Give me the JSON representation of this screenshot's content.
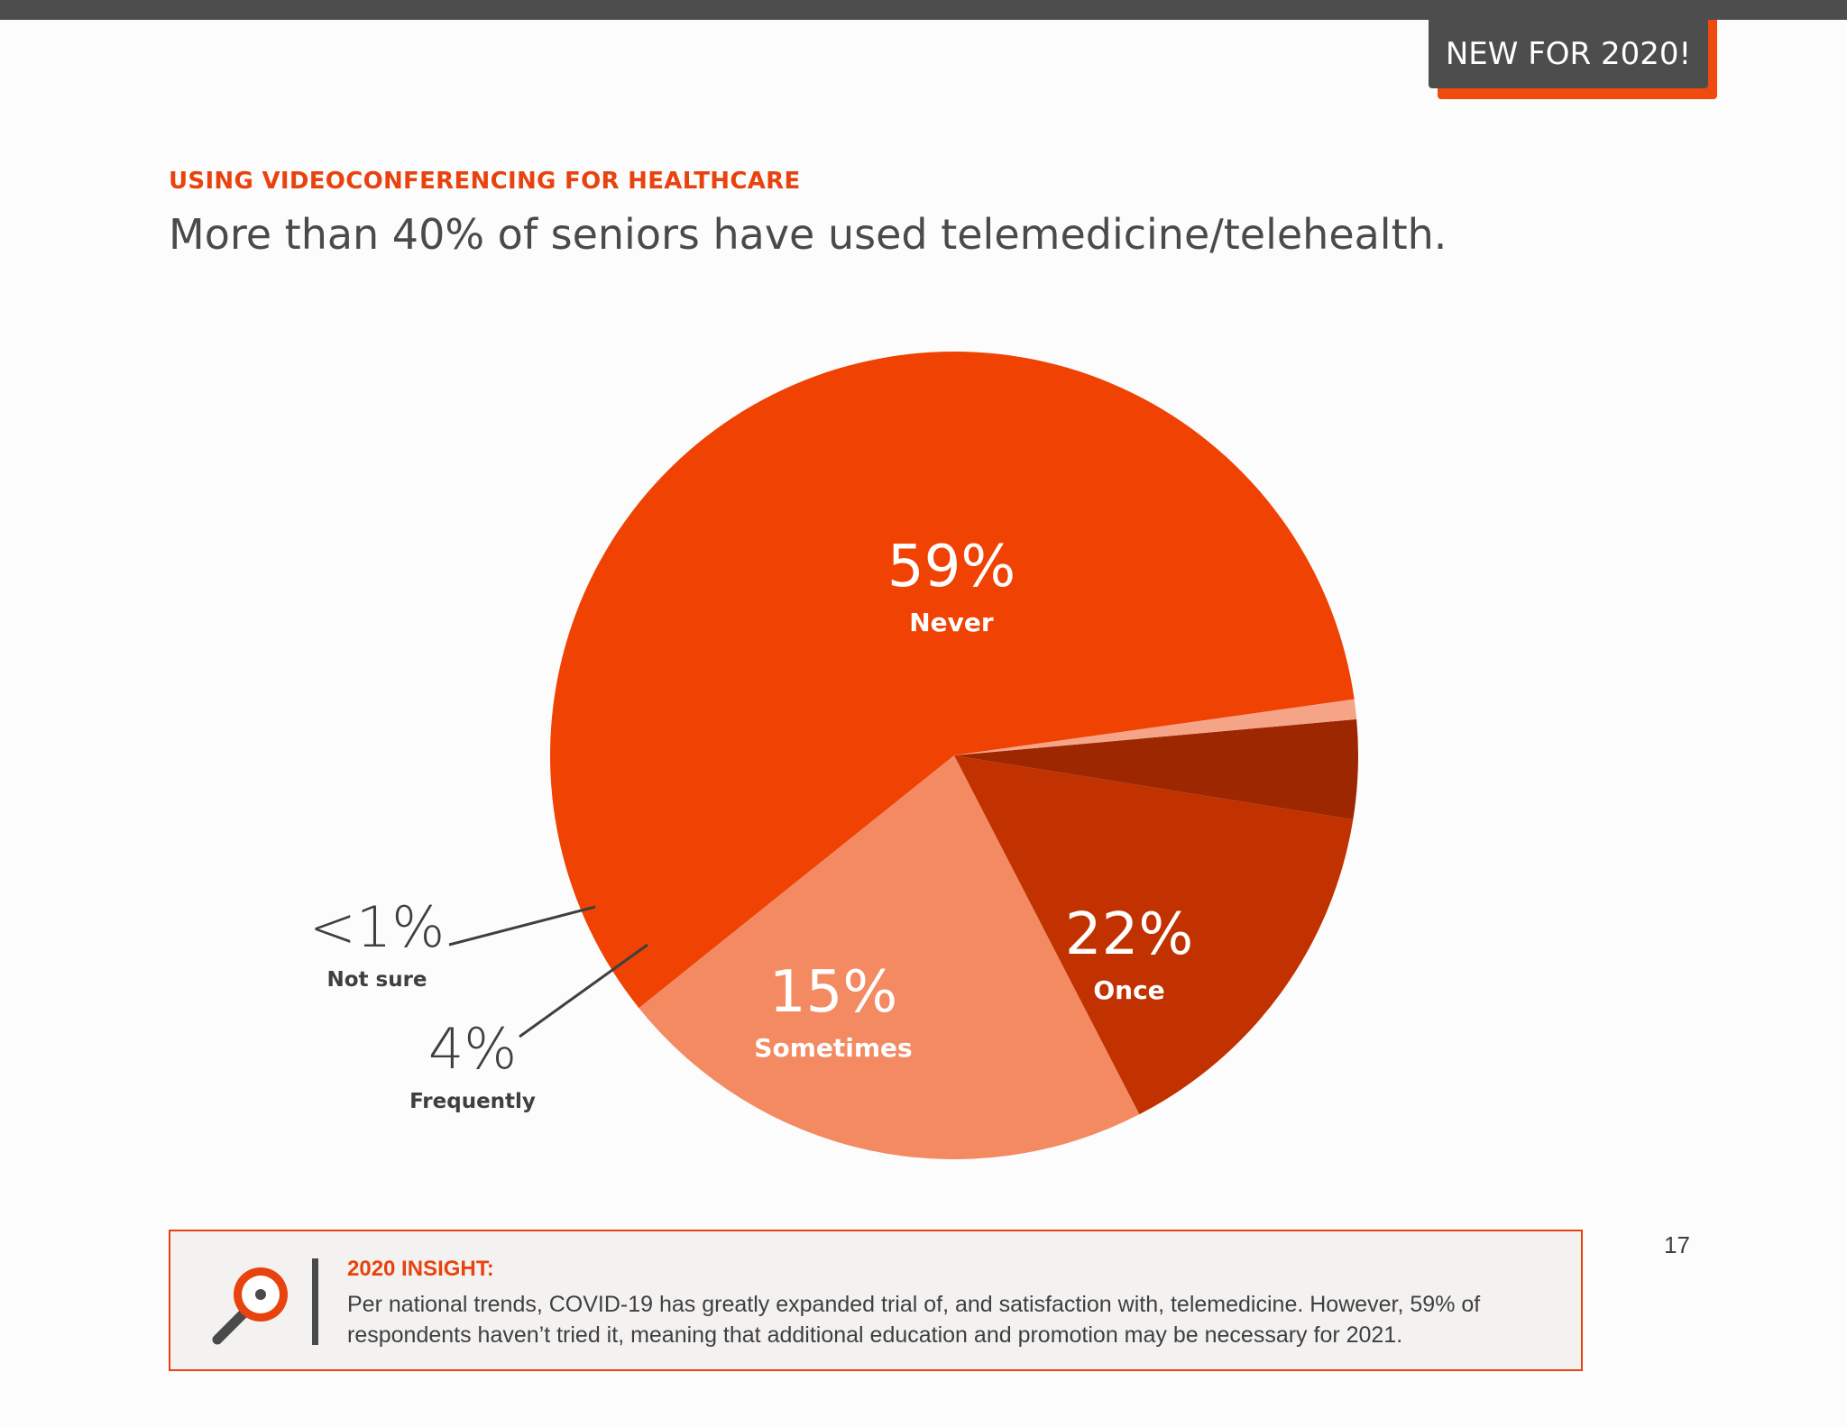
{
  "badge": {
    "text": "NEW FOR 2020!"
  },
  "header": {
    "section_label": "USING VIDEOCONFERENCING FOR HEALTHCARE",
    "headline": "More than 40% of seniors have used telemedicine/telehealth."
  },
  "chart_data": {
    "type": "pie",
    "title": "",
    "slices": [
      {
        "label": "Never",
        "value_label": "59%",
        "value": 59,
        "color": "#f04202"
      },
      {
        "label": "Once",
        "value_label": "22%",
        "value": 22,
        "color": "#f48a62"
      },
      {
        "label": "Sometimes",
        "value_label": "15%",
        "value": 15,
        "color": "#c23200"
      },
      {
        "label": "Frequently",
        "value_label": "4%",
        "value": 4,
        "color": "#9c2700"
      },
      {
        "label": "Not sure",
        "value_label": "<1%",
        "value": 0.8,
        "color": "#f5a487"
      }
    ]
  },
  "insight": {
    "title": "2020 INSIGHT:",
    "body": "Per national trends, COVID-19 has greatly expanded trial of, and satisfaction with, telemedicine. However, 59% of respondents haven’t tried it, meaning that additional education and promotion may be necessary for 2021."
  },
  "page_number": "17",
  "colors": {
    "accent": "#e8430e",
    "dark": "#4d4d4d"
  },
  "icons": {
    "insight": "magnifier-icon"
  }
}
